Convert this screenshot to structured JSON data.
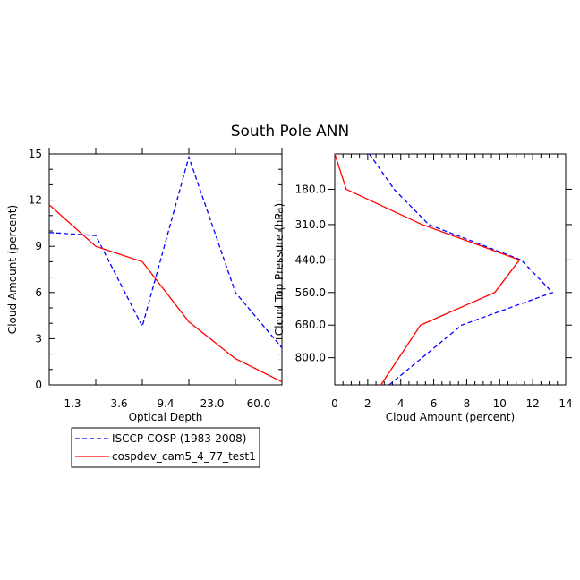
{
  "title": "South Pole ANN",
  "colors": {
    "obs": "#0000ff",
    "model": "#ff0000",
    "axis": "#000000"
  },
  "chart_data": [
    {
      "type": "line",
      "xlabel": "Optical Depth",
      "ylabel": "Cloud Amount (percent)",
      "xtick_labels": [
        "1.3",
        "3.6",
        "9.4",
        "23.0",
        "60.0"
      ],
      "ylim": [
        0,
        15
      ],
      "yticks": [
        "0",
        "3",
        "6",
        "9",
        "12",
        "15"
      ],
      "x_positions": [
        0,
        1,
        2,
        3,
        4,
        5
      ],
      "series": [
        {
          "name": "ISCCP-COSP (1983-2008)",
          "style": "dashed",
          "values": [
            9.9,
            9.7,
            3.8,
            14.8,
            6.0,
            2.4
          ]
        },
        {
          "name": "cospdev_cam5_4_77_test1",
          "style": "solid",
          "values": [
            11.7,
            9.0,
            8.0,
            4.1,
            1.7,
            0.2
          ]
        }
      ]
    },
    {
      "type": "line",
      "xlabel": "Cloud Amount (percent)",
      "ylabel": "Cloud Top Pressure (hPa)",
      "xlim": [
        0,
        14
      ],
      "xticks": [
        "0",
        "2",
        "4",
        "6",
        "8",
        "10",
        "12",
        "14"
      ],
      "ylim": [
        900,
        50
      ],
      "yticks": [
        "180.0",
        "310.0",
        "440.0",
        "560.0",
        "680.0",
        "800.0"
      ],
      "ytick_values": [
        180,
        310,
        440,
        560,
        680,
        800
      ],
      "series": [
        {
          "name": "ISCCP-COSP (1983-2008)",
          "style": "dashed",
          "x": [
            2.1,
            3.6,
            5.7,
            11.3,
            13.2,
            7.7,
            3.3
          ],
          "y": [
            50,
            180,
            310,
            440,
            560,
            680,
            900
          ]
        },
        {
          "name": "cospdev_cam5_4_77_test1",
          "style": "solid",
          "x": [
            0.0,
            0.7,
            5.3,
            11.2,
            9.7,
            5.2,
            2.8
          ],
          "y": [
            50,
            180,
            310,
            440,
            560,
            680,
            900
          ]
        }
      ]
    }
  ],
  "legend": [
    {
      "label": "ISCCP-COSP (1983-2008)",
      "style": "dashed",
      "color": "#0000ff"
    },
    {
      "label": "cospdev_cam5_4_77_test1",
      "style": "solid",
      "color": "#ff0000"
    }
  ]
}
